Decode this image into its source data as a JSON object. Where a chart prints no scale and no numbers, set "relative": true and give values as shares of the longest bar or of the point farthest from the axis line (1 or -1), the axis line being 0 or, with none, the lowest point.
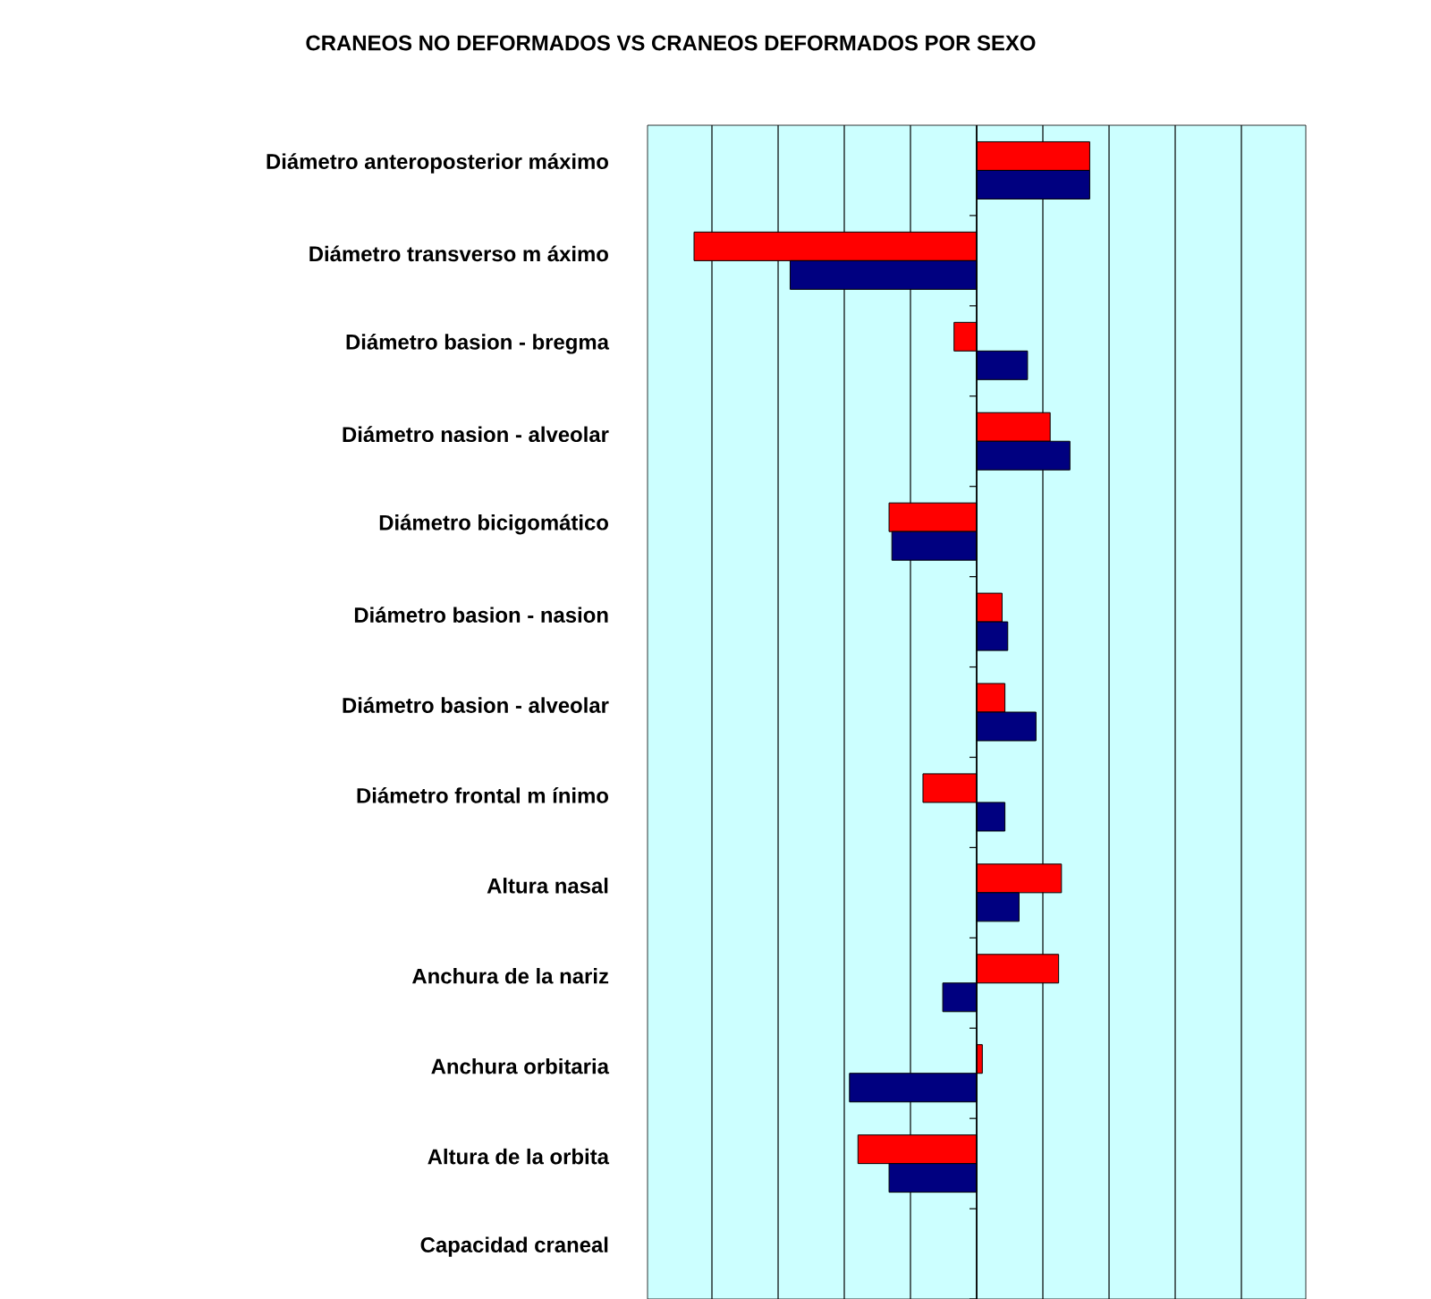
{
  "chart_data": {
    "type": "bar",
    "orientation": "horizontal",
    "relative": true,
    "grid": "x",
    "tick_labels": "y",
    "title": "CRANEOS NO DEFORMADOS VS CRANEOS DEFORMADOS POR SEXO",
    "categories": [
      "Diámetro anteroposterior  máximo",
      "Diámetro transverso m áximo",
      "Diámetro basion - bregma",
      "Diámetro nasion - alveolar",
      "Diámetro bicigomático",
      "Diámetro basion - nasion",
      "Diámetro basion - alveolar",
      "Diámetro frontal m ínimo",
      "Altura nasal",
      "Anchura de la nariz",
      "Anchura orbitaria",
      "Altura de la orbita",
      "Capacidad craneal"
    ],
    "series": [
      {
        "color": "#ff0000",
        "values": [
          0.4,
          -1,
          -0.08,
          0.26,
          -0.31,
          0.09,
          0.1,
          -0.19,
          0.3,
          0.29,
          0.02,
          -0.42,
          null
        ]
      },
      {
        "color": "#000080",
        "values": [
          0.4,
          -0.66,
          0.18,
          0.33,
          -0.3,
          0.11,
          0.21,
          0.1,
          0.15,
          -0.12,
          -0.45,
          -0.31,
          null
        ]
      }
    ]
  }
}
